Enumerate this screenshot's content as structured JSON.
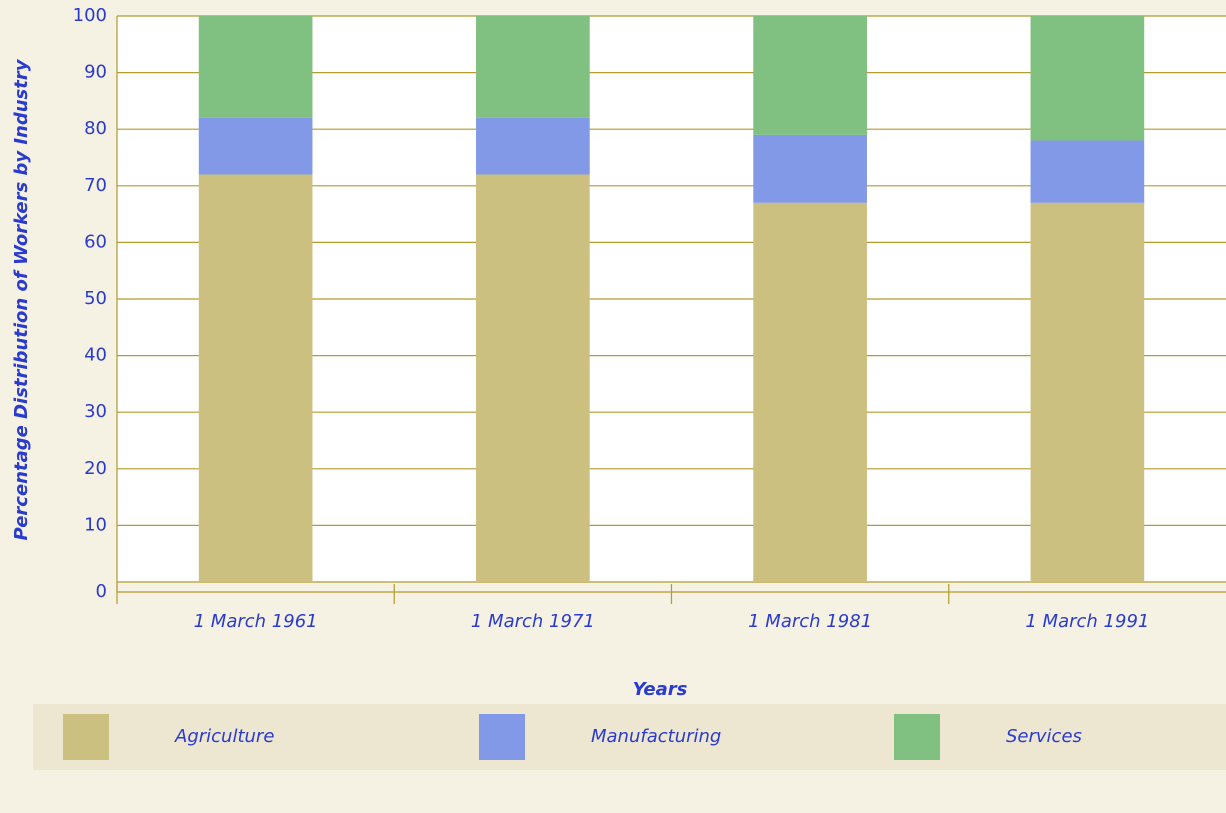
{
  "chart_data": {
    "type": "stacked_bar",
    "categories": [
      "1 March 1961",
      "1 March 1971",
      "1 March 1981",
      "1 March 1991"
    ],
    "series": [
      {
        "name": "Agriculture",
        "color": "#ccc080",
        "values": [
          72,
          72,
          67,
          67
        ]
      },
      {
        "name": "Manufacturing",
        "color": "#8199e6",
        "values": [
          10,
          10,
          12,
          11
        ]
      },
      {
        "name": "Services",
        "color": "#80c080",
        "values": [
          18,
          18,
          21,
          22
        ]
      }
    ],
    "ylim": [
      0,
      100
    ],
    "yticks": [
      0,
      10,
      20,
      30,
      40,
      50,
      60,
      70,
      80,
      90,
      100
    ],
    "xlabel": "Years",
    "ylabel": "Percentage Distribution of Workers by Industry",
    "grid": true
  }
}
